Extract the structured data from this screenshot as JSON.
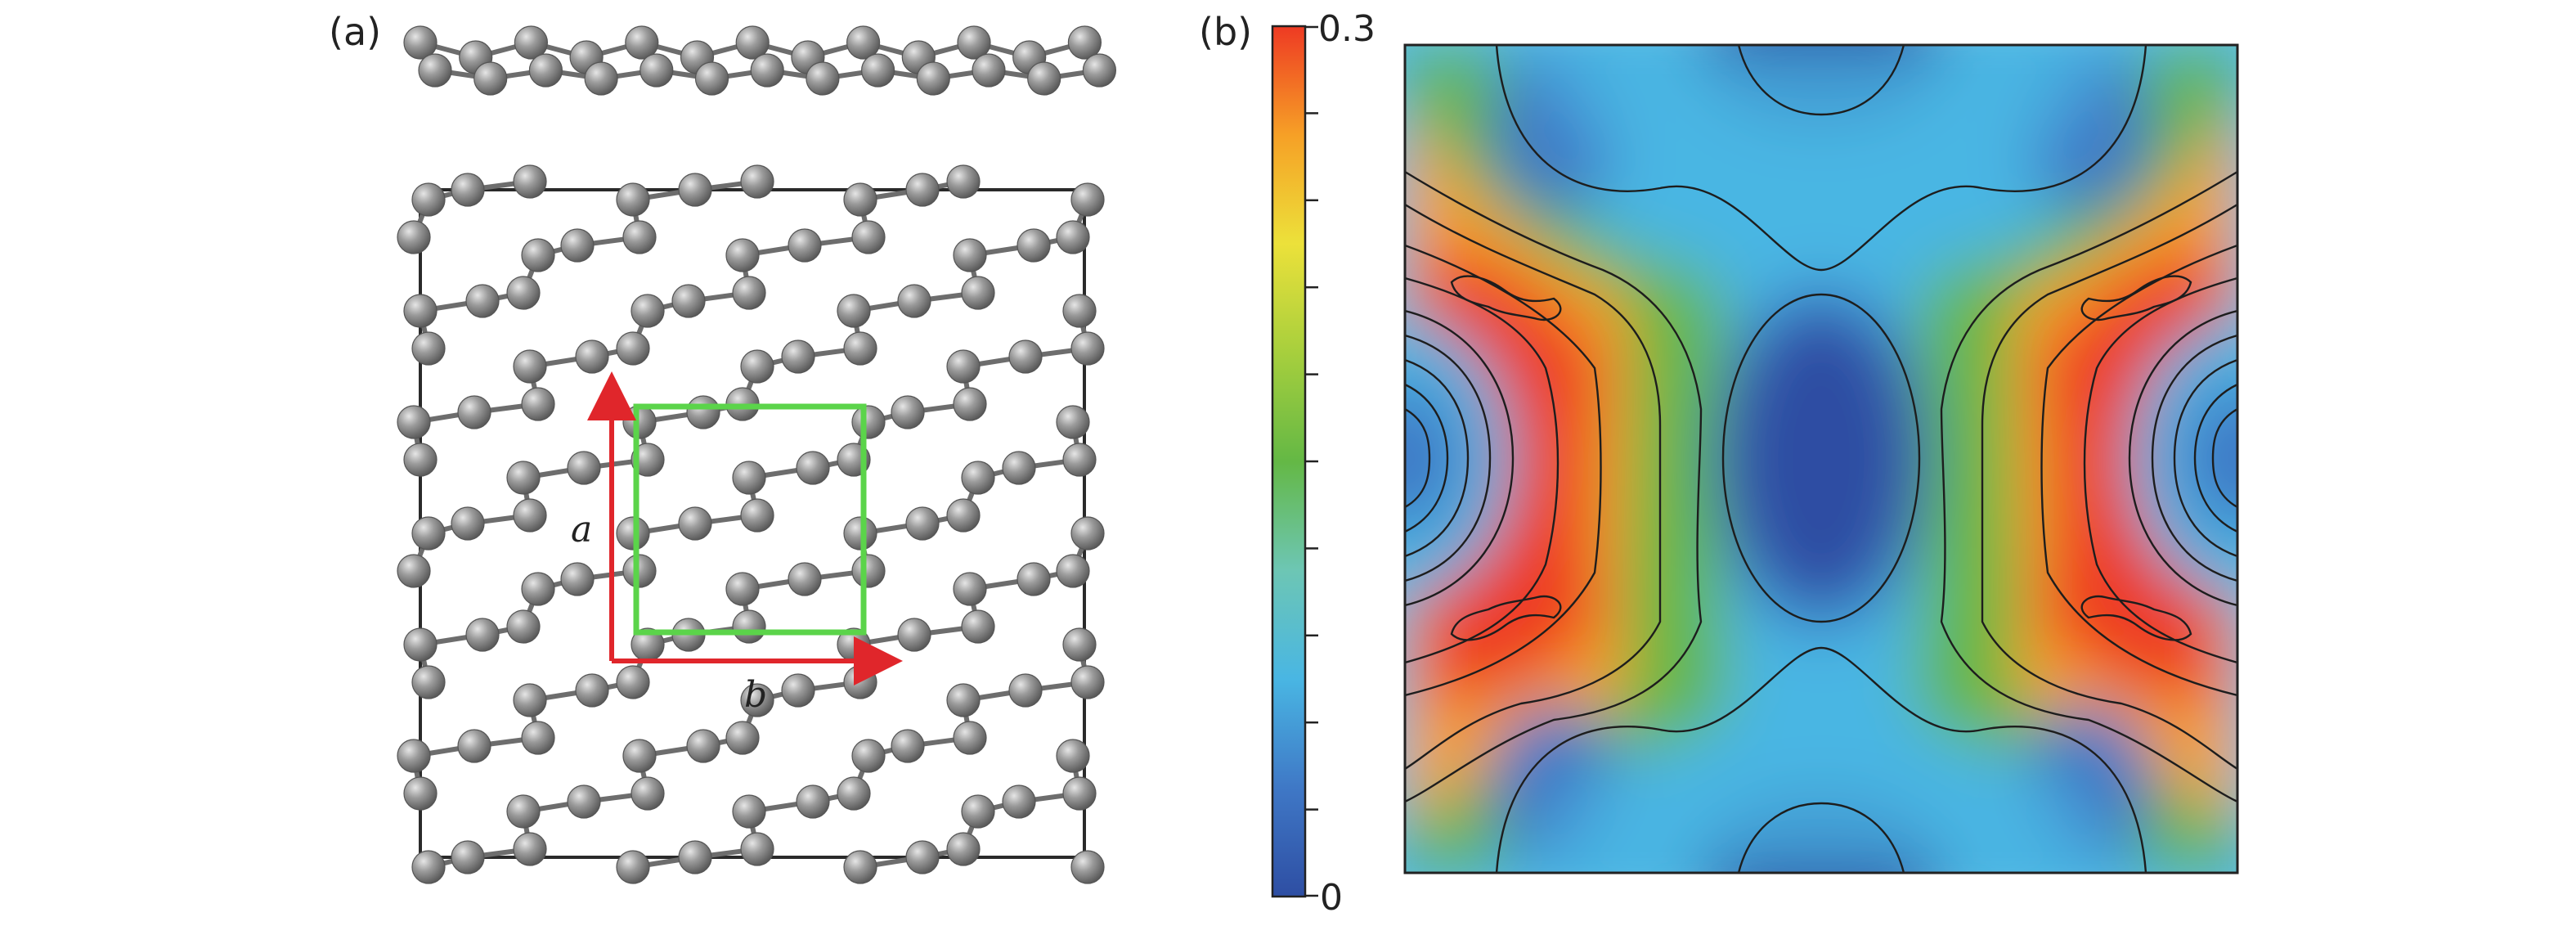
{
  "panels": {
    "a": {
      "label": "(a)",
      "vectors": {
        "a": "a",
        "b": "b"
      }
    },
    "b": {
      "label": "(b)",
      "colorbar": {
        "min_label": "0",
        "max_label": "0.3",
        "min": 0,
        "max": 0.3,
        "minor_ticks": 9,
        "colors": [
          "#2e4ea3",
          "#3f78c6",
          "#49b6e3",
          "#6dc6b4",
          "#64b845",
          "#a7cf3d",
          "#ece13a",
          "#f6a026",
          "#ee3a23"
        ]
      }
    }
  },
  "colors": {
    "atom": "#8a8a8a",
    "bond": "#6d6d6d",
    "frame": "#2a2a2a",
    "unit_cell": "#5bd44a",
    "vector": "#e0262b"
  }
}
